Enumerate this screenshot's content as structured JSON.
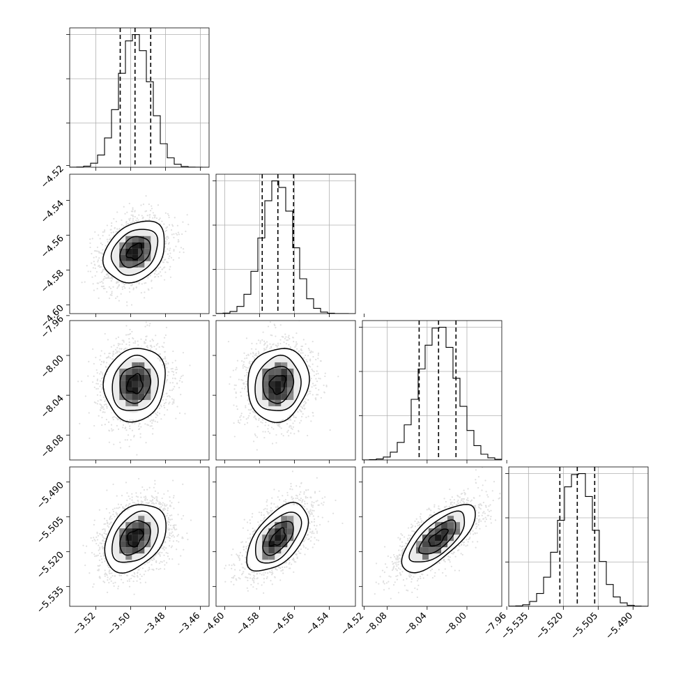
{
  "chart_data": {
    "type": "corner",
    "parameters": [
      {
        "range": [
          -3.535,
          -3.455
        ],
        "ticks": [
          -3.52,
          -3.5,
          -3.48,
          -3.46
        ],
        "tick_labels": [
          "−3.52",
          "−3.50",
          "−3.48",
          "−3.46"
        ],
        "quantiles": [
          -3.506,
          -3.4975,
          -3.4885
        ],
        "mean": -3.4975,
        "sigma": 0.0088
      },
      {
        "range": [
          -4.605,
          -4.525
        ],
        "ticks": [
          -4.6,
          -4.58,
          -4.56,
          -4.54,
          -4.52
        ],
        "tick_labels": [
          "−4.60",
          "−4.58",
          "−4.56",
          "−4.54",
          "−4.52"
        ],
        "quantiles": [
          -4.5785,
          -4.5695,
          -4.5605
        ],
        "mean": -4.5695,
        "sigma": 0.0088
      },
      {
        "range": [
          -8.105,
          -7.965
        ],
        "ticks": [
          -8.08,
          -8.04,
          -8.0,
          -7.96
        ],
        "tick_labels": [
          "−8.08",
          "−8.04",
          "−8.00",
          "−7.96"
        ],
        "quantiles": [
          -8.048,
          -8.0285,
          -8.011
        ],
        "mean": -8.029,
        "sigma": 0.0185
      },
      {
        "range": [
          -5.5435,
          -5.4835
        ],
        "ticks": [
          -5.535,
          -5.52,
          -5.505,
          -5.49
        ],
        "tick_labels": [
          "−5.535",
          "−5.520",
          "−5.505",
          "−5.490"
        ],
        "quantiles": [
          -5.5215,
          -5.514,
          -5.5065
        ],
        "mean": -5.514,
        "sigma": 0.0073
      }
    ],
    "correlations": [
      [
        1,
        0.28,
        0.1,
        0.35
      ],
      [
        0.28,
        1,
        0.1,
        0.55
      ],
      [
        0.1,
        0.1,
        1,
        0.7
      ],
      [
        0.35,
        0.55,
        0.7,
        1
      ]
    ],
    "contour_levels_sigma": [
      0.5,
      1.0,
      1.5,
      2.0
    ],
    "histogram_bins": 20,
    "grid": true,
    "colors": {
      "line": "#000000",
      "grid": "#b0b0b0",
      "points": "#000000"
    }
  }
}
